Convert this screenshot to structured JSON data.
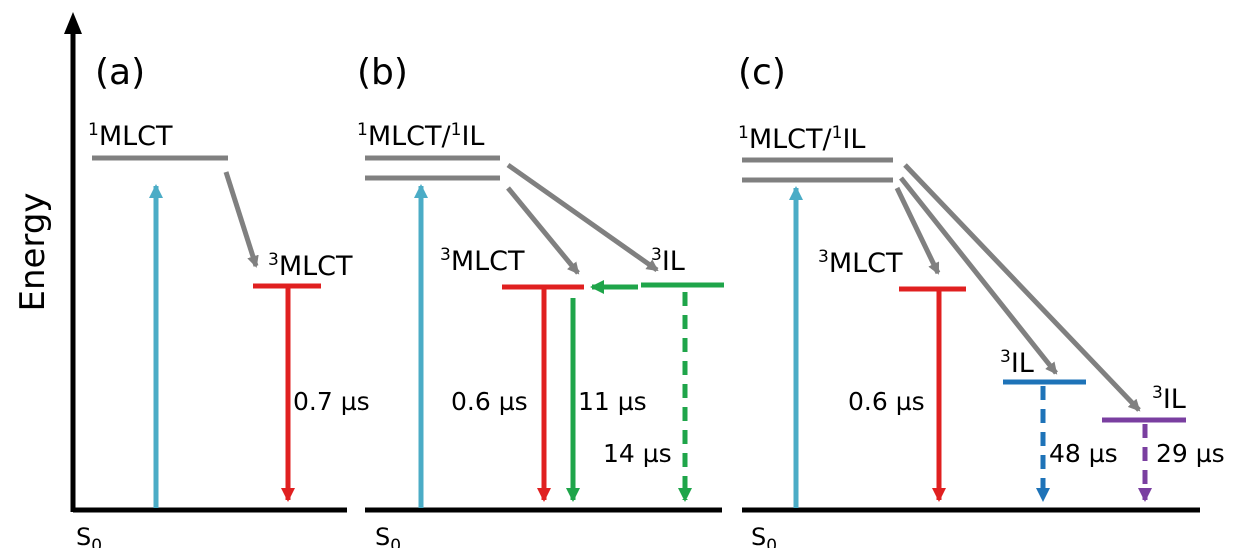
{
  "axis": {
    "label": "Energy"
  },
  "colors": {
    "axis": "#000000",
    "level_singlet": "#808080",
    "isc_arrow": "#808080",
    "excitation": "#4BACC6",
    "mlct_triplet": "#E02020",
    "il_triplet_b": "#1FA54A",
    "il_triplet_c1": "#1E73B8",
    "il_triplet_c2": "#7A3FA0"
  },
  "panels": [
    {
      "id": "a",
      "label": "(a)",
      "ground": {
        "main": "S",
        "sub": "0"
      },
      "singlet": {
        "sup": "1",
        "text": "MLCT"
      },
      "triplets": [
        {
          "sup": "3",
          "text": "MLCT",
          "lifetime": "0.7 µs"
        }
      ]
    },
    {
      "id": "b",
      "label": "(b)",
      "ground": {
        "main": "S",
        "sub": "0"
      },
      "singlet": {
        "sup1": "1",
        "text1": "MLCT/",
        "sup2": "1",
        "text2": "IL"
      },
      "triplets": [
        {
          "sup": "3",
          "text": "MLCT",
          "lifetime": "0.6 µs",
          "lifetime_b": "11 µs"
        },
        {
          "sup": "3",
          "text": "IL",
          "lifetime": "14 µs"
        }
      ]
    },
    {
      "id": "c",
      "label": "(c)",
      "ground": {
        "main": "S",
        "sub": "0"
      },
      "singlet": {
        "sup1": "1",
        "text1": "MLCT/",
        "sup2": "1",
        "text2": "IL"
      },
      "triplets": [
        {
          "sup": "3",
          "text": "MLCT",
          "lifetime": "0.6 µs"
        },
        {
          "sup": "3",
          "text": "IL",
          "lifetime": "48 µs"
        },
        {
          "sup": "3",
          "text": "IL",
          "lifetime": "29 µs"
        }
      ]
    }
  ]
}
